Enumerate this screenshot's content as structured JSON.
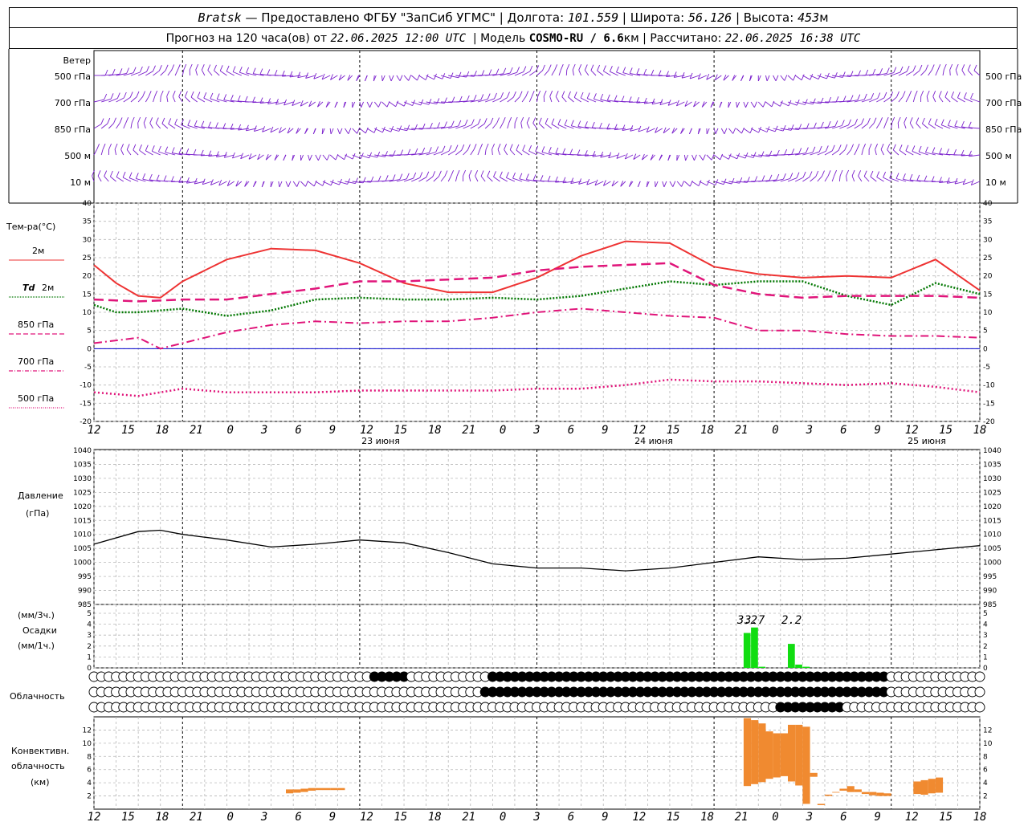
{
  "header": {
    "station": "Bratsk",
    "provider": "— Предоставлено ФГБУ \"ЗапСиб УГМС\"",
    "lon_label": "Долгота:",
    "lon": "101.559",
    "lat_label": "Широта:",
    "lat": "56.126",
    "alt_label": "Высота:",
    "alt": "453",
    "alt_unit": "м",
    "forecast_prefix": "Прогноз на 120 часа(ов) от",
    "forecast_time": "22.06.2025 12:00 UTC",
    "model_label": "Модель",
    "model": "COSMO-RU / 6.6",
    "model_unit": "км",
    "calc_label": "Рассчитано:",
    "calc_time": "22.06.2025 16:38 UTC"
  },
  "labels": {
    "wind": "Ветер",
    "wind_levels": [
      "500 гПа",
      "700 гПа",
      "850 гПа",
      "500 м",
      "10 м"
    ],
    "temp": "Тем-ра(°С)",
    "t2m": "2м",
    "td_prefix": "Td",
    "td_suffix": "2м",
    "t850": "850 гПа",
    "t700": "700 гПа",
    "t500": "500 гПа",
    "pressure": "Давление",
    "pressure_unit": "(гПа)",
    "precip_unit3": "(мм/3ч.)",
    "precip": "Осадки",
    "precip_unit1": "(мм/1ч.)",
    "cloud": "Облачность",
    "conv1": "Конвективн.",
    "conv2": "облачность",
    "conv3": "(км)"
  },
  "colors": {
    "t2m": "#ee3333",
    "td": "#007700",
    "t850": "#e0157a",
    "t700": "#e0157a",
    "t500": "#e0157a",
    "wind": "#7a1fcc",
    "precip": "#11dd11",
    "conv": "#f08a30",
    "zero_line": "#0000cc",
    "grid": "#b8b8b8"
  },
  "x_axis": {
    "hour_labels": [
      "12",
      "15",
      "18",
      "21",
      "0",
      "3",
      "6",
      "9",
      "12",
      "15",
      "18",
      "21",
      "0",
      "3",
      "6",
      "9",
      "12",
      "15",
      "18",
      "21",
      "0",
      "3",
      "6",
      "9",
      "12",
      "15",
      "18"
    ],
    "day_labels": [
      "23 июня",
      "24 июня",
      "25 июня"
    ]
  },
  "chart_data": [
    {
      "type": "line",
      "title": "Тем-ра(°С)",
      "x_unit": "hours from 22.06.2025 12:00 UTC",
      "ylim": [
        -20,
        40
      ],
      "yticks": [
        -20,
        -15,
        -10,
        -5,
        0,
        5,
        10,
        15,
        20,
        25,
        30,
        35,
        40
      ],
      "series": [
        {
          "name": "2м",
          "x": [
            0,
            3,
            6,
            9,
            12,
            18,
            24,
            30,
            36,
            42,
            48,
            54,
            60,
            66,
            72,
            78,
            84,
            90,
            96,
            102,
            108,
            114,
            120
          ],
          "values": [
            23,
            18,
            14.5,
            14,
            18.5,
            24.5,
            27.5,
            27,
            23.5,
            18,
            15.5,
            15.5,
            19.5,
            25.5,
            29.5,
            29,
            22.5,
            20.5,
            19.5,
            20,
            19.5,
            24.5,
            16
          ]
        },
        {
          "name": "Td 2м",
          "x": [
            0,
            3,
            6,
            12,
            18,
            24,
            30,
            36,
            42,
            48,
            54,
            60,
            66,
            72,
            78,
            84,
            90,
            96,
            102,
            108,
            114,
            120
          ],
          "values": [
            12,
            10,
            10,
            11,
            9,
            10.5,
            13.5,
            14,
            13.5,
            13.5,
            14,
            13.5,
            14.5,
            16.5,
            18.5,
            17.5,
            18.5,
            18.5,
            14.5,
            12,
            18,
            15
          ]
        },
        {
          "name": "850 гПа",
          "x": [
            0,
            6,
            12,
            18,
            24,
            30,
            36,
            42,
            48,
            54,
            60,
            66,
            72,
            78,
            84,
            90,
            96,
            102,
            108,
            114,
            120
          ],
          "values": [
            13.5,
            13,
            13.5,
            13.5,
            15,
            16.5,
            18.5,
            18.5,
            19,
            19.5,
            21.5,
            22.5,
            23,
            23.5,
            17.5,
            15,
            14,
            14.5,
            14.5,
            14.5,
            14
          ]
        },
        {
          "name": "700 гПа",
          "x": [
            0,
            6,
            9,
            12,
            18,
            24,
            30,
            36,
            42,
            48,
            54,
            60,
            66,
            72,
            78,
            84,
            90,
            96,
            102,
            108,
            114,
            120
          ],
          "values": [
            1.5,
            3,
            0,
            1.5,
            4.5,
            6.5,
            7.5,
            7,
            7.5,
            7.5,
            8.5,
            10,
            11,
            10,
            9,
            8.5,
            5,
            5,
            4,
            3.5,
            3.5,
            3
          ]
        },
        {
          "name": "500 гПа",
          "x": [
            0,
            6,
            12,
            18,
            24,
            30,
            36,
            42,
            48,
            54,
            60,
            66,
            72,
            78,
            84,
            90,
            96,
            102,
            108,
            114,
            120
          ],
          "values": [
            -12,
            -13,
            -11,
            -12,
            -12,
            -12,
            -11.5,
            -11.5,
            -11.5,
            -11.5,
            -11,
            -11,
            -10,
            -8.5,
            -9,
            -9,
            -9.5,
            -10,
            -9.5,
            -10.5,
            -12
          ]
        }
      ]
    },
    {
      "type": "line",
      "title": "Давление (гПа)",
      "x_unit": "hours from 22.06.2025 12:00 UTC",
      "ylim": [
        985,
        1040
      ],
      "yticks": [
        985,
        990,
        995,
        1000,
        1005,
        1010,
        1015,
        1020,
        1025,
        1030,
        1035,
        1040
      ],
      "series": [
        {
          "name": "Давление",
          "x": [
            0,
            6,
            9,
            12,
            18,
            24,
            30,
            36,
            42,
            48,
            54,
            60,
            66,
            72,
            78,
            84,
            90,
            96,
            102,
            108,
            114,
            120
          ],
          "values": [
            1006.5,
            1011,
            1011.5,
            1010,
            1008,
            1005.5,
            1006.5,
            1008,
            1007,
            1003.5,
            999.5,
            998,
            998,
            997,
            998,
            1000,
            1002,
            1001,
            1001.5,
            1003,
            1004.5,
            1006
          ]
        }
      ]
    },
    {
      "type": "bar",
      "title": "Осадки",
      "x_unit": "hours from 22.06.2025 12:00 UTC",
      "ylim": [
        0,
        5
      ],
      "yticks": [
        0,
        1,
        2,
        3,
        4,
        5
      ],
      "series": [
        {
          "name": "мм/1ч.",
          "x": [
            89,
            90,
            91,
            95,
            96,
            97
          ],
          "values": [
            3.2,
            3.7,
            0.1,
            2.2,
            0.3,
            0.1
          ],
          "data_labels": [
            "3.2",
            "3.7",
            "",
            "2.2",
            "",
            ""
          ]
        }
      ]
    },
    {
      "type": "bar",
      "title": "Конвективн. облачность (км)",
      "x_unit": "hours from 22.06.2025 12:00 UTC",
      "ylim": [
        0,
        14
      ],
      "yticks": [
        2,
        4,
        6,
        8,
        10,
        12
      ],
      "series": [
        {
          "name": "конвективная облачность",
          "x": [
            27,
            28,
            29,
            30,
            31,
            32,
            33,
            34,
            89,
            90,
            91,
            92,
            93,
            94,
            95,
            96,
            97,
            98,
            99,
            100,
            101,
            102,
            103,
            104,
            105,
            106,
            107,
            108,
            112,
            113,
            114,
            115
          ],
          "base": [
            2.4,
            2.5,
            2.6,
            2.8,
            2.9,
            2.9,
            2.9,
            2.9,
            3.5,
            3.8,
            4.1,
            4.6,
            4.8,
            5.0,
            4.2,
            3.6,
            0.8,
            4.9,
            0.6,
            2.0,
            2.5,
            2.8,
            2.6,
            2.6,
            2.3,
            2.1,
            2.0,
            2.0,
            2.3,
            2.2,
            2.4,
            2.5
          ],
          "top": [
            3.0,
            3.0,
            3.1,
            3.2,
            3.2,
            3.2,
            3.2,
            3.2,
            13.8,
            13.5,
            13.0,
            11.8,
            11.5,
            11.5,
            12.8,
            12.8,
            12.5,
            5.5,
            0.8,
            2.2,
            2.6,
            3.1,
            3.5,
            3.0,
            2.6,
            2.6,
            2.5,
            2.4,
            4.2,
            4.4,
            4.6,
            4.8
          ]
        }
      ]
    }
  ]
}
